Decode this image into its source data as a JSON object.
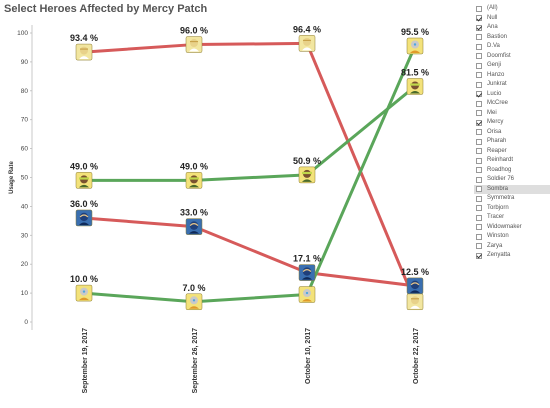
{
  "title": "Select Heroes Affected by Mercy Patch",
  "filter": {
    "items": [
      {
        "label": "(All)",
        "checked": false
      },
      {
        "label": "Null",
        "checked": true
      },
      {
        "label": "Ana",
        "checked": true
      },
      {
        "label": "Bastion",
        "checked": false
      },
      {
        "label": "D.Va",
        "checked": false
      },
      {
        "label": "Doomfist",
        "checked": false
      },
      {
        "label": "Genji",
        "checked": false
      },
      {
        "label": "Hanzo",
        "checked": false
      },
      {
        "label": "Junkrat",
        "checked": false
      },
      {
        "label": "Lucio",
        "checked": true
      },
      {
        "label": "McCree",
        "checked": false
      },
      {
        "label": "Mei",
        "checked": false
      },
      {
        "label": "Mercy",
        "checked": true
      },
      {
        "label": "Orisa",
        "checked": false
      },
      {
        "label": "Pharah",
        "checked": false
      },
      {
        "label": "Reaper",
        "checked": false
      },
      {
        "label": "Reinhardt",
        "checked": false
      },
      {
        "label": "Roadhog",
        "checked": false
      },
      {
        "label": "Soldier 76",
        "checked": false
      },
      {
        "label": "Sombra",
        "checked": false,
        "highlight": true
      },
      {
        "label": "Symmetra",
        "checked": false
      },
      {
        "label": "Torbjorn",
        "checked": false
      },
      {
        "label": "Tracer",
        "checked": false
      },
      {
        "label": "Widowmaker",
        "checked": false
      },
      {
        "label": "Winston",
        "checked": false
      },
      {
        "label": "Zarya",
        "checked": false
      },
      {
        "label": "Zenyatta",
        "checked": true
      }
    ]
  },
  "chart_data": {
    "type": "line",
    "title": "Select Heroes Affected by Mercy Patch",
    "xlabel": "",
    "ylabel": "Usage Rate",
    "categories": [
      "September 19, 2017",
      "September 26, 2017",
      "October 10, 2017",
      "October 22, 2017"
    ],
    "ylim": [
      0,
      100
    ],
    "yticks": [
      0,
      10,
      20,
      30,
      40,
      50,
      60,
      70,
      80,
      90,
      100
    ],
    "grid": false,
    "series": [
      {
        "color": "#d65a5a",
        "icon": "mercy-icon",
        "values": [
          93.4,
          96.0,
          96.4,
          7.0
        ],
        "labels": [
          "93.4 %",
          "96.0 %",
          "96.4 %",
          ""
        ]
      },
      {
        "color": "#5aa65a",
        "icon": "lucio-icon",
        "values": [
          49.0,
          49.0,
          50.9,
          81.5
        ],
        "labels": [
          "49.0 %",
          "49.0 %",
          "50.9 %",
          "81.5 %"
        ]
      },
      {
        "color": "#d65a5a",
        "icon": "ana-icon",
        "values": [
          36.0,
          33.0,
          17.1,
          12.5
        ],
        "labels": [
          "36.0 %",
          "33.0 %",
          "17.1 %",
          "12.5 %"
        ]
      },
      {
        "color": "#5aa65a",
        "icon": "zenyatta-icon",
        "values": [
          10.0,
          7.0,
          9.5,
          95.5
        ],
        "labels": [
          "10.0 %",
          "7.0 %",
          "",
          "95.5 %"
        ]
      }
    ]
  }
}
